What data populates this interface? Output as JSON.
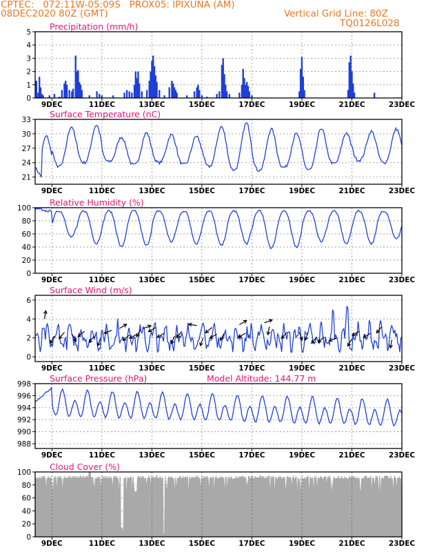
{
  "header": {
    "left_line1": "CPTEC:   072:11W-05:09S   PROX05: IPIXUNA (AM)",
    "left_line2": "08DEC2020 80Z (GMT)",
    "right_line1": "Vertical Grid Line: 80Z",
    "right_line2": "TQ0126L028"
  },
  "colors": {
    "header": "#e8781e",
    "title": "#e0147a",
    "series": "#1f3fd8",
    "cloud": "#a9a9a9",
    "grid": "#9a9a9a"
  },
  "x_ticks": [
    "9DEC",
    "11DEC",
    "13DEC",
    "15DEC",
    "17DEC",
    "19DEC",
    "21DEC",
    "23DEC"
  ],
  "x_tick_days": [
    9,
    11,
    13,
    15,
    17,
    19,
    21,
    23
  ],
  "x_range_days": [
    8.33,
    23.0
  ],
  "chart_data": [
    {
      "type": "bar",
      "title": "Precipitation (mm/h)",
      "ylim": [
        0,
        5
      ],
      "yticks": [
        0,
        1,
        2,
        3,
        4,
        5
      ],
      "bars": [
        [
          8.38,
          1.3
        ],
        [
          8.45,
          0.4
        ],
        [
          8.5,
          1.6
        ],
        [
          8.55,
          0.8
        ],
        [
          8.6,
          0.3
        ],
        [
          8.65,
          0.2
        ],
        [
          8.9,
          0.2
        ],
        [
          9.1,
          0.3
        ],
        [
          9.3,
          0.1
        ],
        [
          9.4,
          0.6
        ],
        [
          9.5,
          1.1
        ],
        [
          9.55,
          1.3
        ],
        [
          9.6,
          1.0
        ],
        [
          9.7,
          0.6
        ],
        [
          9.8,
          0.5
        ],
        [
          9.85,
          0.7
        ],
        [
          9.95,
          3.2
        ],
        [
          10.0,
          2.0
        ],
        [
          10.05,
          2.1
        ],
        [
          10.1,
          1.2
        ],
        [
          10.15,
          1.0
        ],
        [
          10.2,
          0.6
        ],
        [
          10.5,
          0.2
        ],
        [
          10.8,
          0.5
        ],
        [
          10.9,
          0.3
        ],
        [
          11.0,
          0.2
        ],
        [
          11.45,
          0.2
        ],
        [
          11.9,
          0.4
        ],
        [
          12.0,
          0.6
        ],
        [
          12.1,
          0.5
        ],
        [
          12.2,
          0.4
        ],
        [
          12.3,
          1.0
        ],
        [
          12.35,
          2.0
        ],
        [
          12.4,
          1.5
        ],
        [
          12.45,
          2.0
        ],
        [
          12.5,
          1.1
        ],
        [
          12.6,
          0.5
        ],
        [
          12.8,
          0.6
        ],
        [
          12.9,
          1.3
        ],
        [
          12.95,
          2.0
        ],
        [
          13.0,
          2.8
        ],
        [
          13.05,
          3.2
        ],
        [
          13.1,
          2.4
        ],
        [
          13.15,
          1.7
        ],
        [
          13.2,
          1.2
        ],
        [
          13.3,
          0.6
        ],
        [
          13.5,
          0.2
        ],
        [
          13.7,
          0.8
        ],
        [
          13.8,
          1.3
        ],
        [
          13.85,
          1.1
        ],
        [
          13.9,
          0.8
        ],
        [
          13.95,
          0.6
        ],
        [
          14.0,
          0.4
        ],
        [
          14.4,
          0.2
        ],
        [
          14.7,
          0.5
        ],
        [
          14.8,
          0.8
        ],
        [
          14.85,
          1.0
        ],
        [
          14.9,
          0.6
        ],
        [
          15.0,
          0.2
        ],
        [
          15.2,
          0.1
        ],
        [
          15.6,
          0.3
        ],
        [
          15.7,
          0.5
        ],
        [
          15.8,
          2.5
        ],
        [
          15.85,
          3.0
        ],
        [
          15.9,
          1.8
        ],
        [
          15.95,
          1.0
        ],
        [
          16.0,
          0.5
        ],
        [
          16.1,
          0.3
        ],
        [
          16.5,
          0.4
        ],
        [
          16.6,
          1.0
        ],
        [
          16.65,
          2.2
        ],
        [
          16.7,
          1.5
        ],
        [
          16.75,
          1.0
        ],
        [
          16.8,
          1.2
        ],
        [
          16.85,
          0.9
        ],
        [
          16.9,
          0.5
        ],
        [
          17.0,
          0.2
        ],
        [
          18.9,
          0.5
        ],
        [
          18.95,
          2.2
        ],
        [
          19.0,
          3.1
        ],
        [
          19.05,
          1.6
        ],
        [
          19.1,
          0.6
        ],
        [
          20.85,
          0.6
        ],
        [
          20.9,
          2.7
        ],
        [
          20.95,
          3.2
        ],
        [
          21.0,
          2.0
        ],
        [
          21.05,
          1.1
        ],
        [
          21.1,
          0.4
        ],
        [
          21.9,
          0.4
        ]
      ]
    },
    {
      "type": "line",
      "title": "Surface Temperature (nC)",
      "ylim": [
        19.5,
        33
      ],
      "yticks": [
        21,
        24,
        27,
        30,
        33
      ]
    },
    {
      "type": "line",
      "title": "Relative Humidity (%)",
      "ylim": [
        0,
        100
      ],
      "yticks": [
        0,
        20,
        40,
        60,
        80,
        100
      ]
    },
    {
      "type": "line",
      "title": "Surface Wind (m/s)",
      "ylim": [
        -0.5,
        6.5
      ],
      "yticks": [
        0,
        2,
        4,
        6
      ],
      "arrows": [
        [
          8.7,
          4.0,
          80
        ],
        [
          9.1,
          2.2,
          240
        ],
        [
          9.5,
          2.6,
          -130
        ],
        [
          9.8,
          2.4,
          -60
        ],
        [
          10.3,
          2.7,
          -140
        ],
        [
          10.7,
          2.2,
          -130
        ],
        [
          10.95,
          2.0,
          -110
        ],
        [
          11.4,
          2.8,
          -160
        ],
        [
          11.7,
          3.0,
          30
        ],
        [
          12.1,
          2.3,
          -140
        ],
        [
          12.4,
          2.4,
          -150
        ],
        [
          12.55,
          2.9,
          -120
        ],
        [
          12.65,
          3.0,
          20
        ],
        [
          13.15,
          3.1,
          -150
        ],
        [
          13.5,
          2.5,
          -150
        ],
        [
          13.9,
          2.2,
          -110
        ],
        [
          14.2,
          2.7,
          -130
        ],
        [
          14.8,
          3.3,
          170
        ],
        [
          15.05,
          2.0,
          250
        ],
        [
          15.4,
          3.1,
          -140
        ],
        [
          15.6,
          2.4,
          -150
        ],
        [
          15.9,
          2.5,
          -120
        ],
        [
          16.5,
          3.4,
          30
        ],
        [
          16.75,
          2.5,
          -150
        ],
        [
          17.5,
          3.6,
          20
        ],
        [
          17.7,
          3.2,
          -100
        ],
        [
          18.4,
          2.6,
          -130
        ],
        [
          18.9,
          2.6,
          -70
        ],
        [
          19.25,
          2.6,
          -110
        ],
        [
          19.6,
          2.1,
          -130
        ],
        [
          19.9,
          2.1,
          -140
        ],
        [
          20.4,
          2.0,
          -160
        ],
        [
          21.0,
          1.9,
          -120
        ],
        [
          21.3,
          2.7,
          -150
        ],
        [
          21.75,
          2.5,
          -150
        ],
        [
          22.2,
          3.2,
          -130
        ],
        [
          22.6,
          1.8,
          -100
        ]
      ]
    },
    {
      "type": "line",
      "title": "Surface Pressure (hPa)",
      "annotation": "Model Altitude: 144.77 m",
      "ylim": [
        987.2,
        998
      ],
      "yticks": [
        988,
        990,
        992,
        994,
        996,
        998
      ]
    },
    {
      "type": "area",
      "title": "Cloud Cover (%)",
      "ylim": [
        0,
        100
      ],
      "yticks": [
        0,
        20,
        40,
        60,
        80,
        100
      ]
    }
  ]
}
